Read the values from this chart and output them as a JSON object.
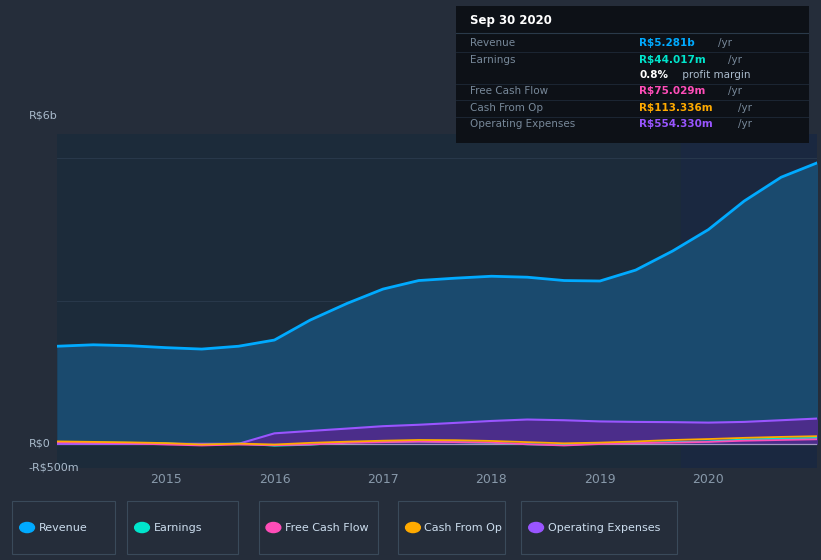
{
  "bg_color": "#252d3a",
  "plot_bg_color": "#1c2b3a",
  "grid_color": "#2e3f52",
  "ylabel_top": "R$6b",
  "ylabel_mid": "R$0",
  "ylabel_bot": "-R$500m",
  "ylim": [
    -500,
    6500
  ],
  "series": {
    "x": [
      2014.0,
      2014.33,
      2014.67,
      2015.0,
      2015.33,
      2015.67,
      2016.0,
      2016.33,
      2016.67,
      2017.0,
      2017.33,
      2017.67,
      2018.0,
      2018.33,
      2018.67,
      2019.0,
      2019.33,
      2019.67,
      2020.0,
      2020.33,
      2020.67,
      2021.0
    ],
    "revenue": [
      2050,
      2080,
      2060,
      2020,
      1990,
      2050,
      2180,
      2600,
      2950,
      3250,
      3430,
      3480,
      3520,
      3500,
      3430,
      3420,
      3650,
      4050,
      4500,
      5100,
      5600,
      5900
    ],
    "earnings": [
      40,
      30,
      20,
      10,
      -25,
      5,
      -40,
      -20,
      30,
      40,
      50,
      35,
      20,
      -10,
      -25,
      5,
      20,
      35,
      50,
      90,
      110,
      125
    ],
    "free_cash_flow": [
      30,
      20,
      10,
      -15,
      -35,
      -15,
      -30,
      -15,
      20,
      35,
      45,
      35,
      25,
      -10,
      -35,
      -5,
      15,
      25,
      40,
      65,
      80,
      95
    ],
    "cash_from_op": [
      50,
      40,
      30,
      15,
      -15,
      5,
      -15,
      20,
      45,
      65,
      80,
      75,
      60,
      35,
      10,
      25,
      50,
      80,
      100,
      125,
      145,
      160
    ],
    "operating_expenses": [
      0,
      0,
      0,
      0,
      0,
      0,
      220,
      270,
      320,
      370,
      400,
      440,
      480,
      510,
      495,
      470,
      460,
      455,
      445,
      460,
      495,
      530
    ]
  },
  "colors": {
    "revenue": "#00aaff",
    "revenue_fill": "#1a4a6e",
    "earnings": "#00e5cc",
    "free_cash_flow": "#ff4db8",
    "cash_from_op": "#ffaa00",
    "operating_expenses": "#9955ff",
    "operating_expenses_fill": "#4b2d8a"
  },
  "highlight_start": 2019.75,
  "highlight_color": "#1a2840",
  "xticks": [
    2015,
    2016,
    2017,
    2018,
    2019,
    2020
  ],
  "legend": [
    {
      "label": "Revenue",
      "color": "#00aaff"
    },
    {
      "label": "Earnings",
      "color": "#00e5cc"
    },
    {
      "label": "Free Cash Flow",
      "color": "#ff4db8"
    },
    {
      "label": "Cash From Op",
      "color": "#ffaa00"
    },
    {
      "label": "Operating Expenses",
      "color": "#9955ff"
    }
  ],
  "info_box": {
    "date": "Sep 30 2020",
    "date_color": "#ffffff",
    "bg_color": "#0d1117",
    "border_color": "#2a3a4a",
    "rows": [
      {
        "label": "Revenue",
        "label_color": "#778899",
        "value": "R$5.281b",
        "value_color": "#00aaff",
        "unit": "/yr",
        "unit_color": "#778899"
      },
      {
        "label": "Earnings",
        "label_color": "#778899",
        "value": "R$44.017m",
        "value_color": "#00e5cc",
        "unit": "/yr",
        "unit_color": "#778899"
      },
      {
        "label": "",
        "label_color": "#778899",
        "value": "0.8%",
        "value_color": "#ffffff",
        "unit": " profit margin",
        "unit_color": "#aabbcc"
      },
      {
        "label": "Free Cash Flow",
        "label_color": "#778899",
        "value": "R$75.029m",
        "value_color": "#ff4db8",
        "unit": "/yr",
        "unit_color": "#778899"
      },
      {
        "label": "Cash From Op",
        "label_color": "#778899",
        "value": "R$113.336m",
        "value_color": "#ffaa00",
        "unit": "/yr",
        "unit_color": "#778899"
      },
      {
        "label": "Operating Expenses",
        "label_color": "#778899",
        "value": "R$554.330m",
        "value_color": "#9955ff",
        "unit": "/yr",
        "unit_color": "#778899"
      }
    ]
  }
}
